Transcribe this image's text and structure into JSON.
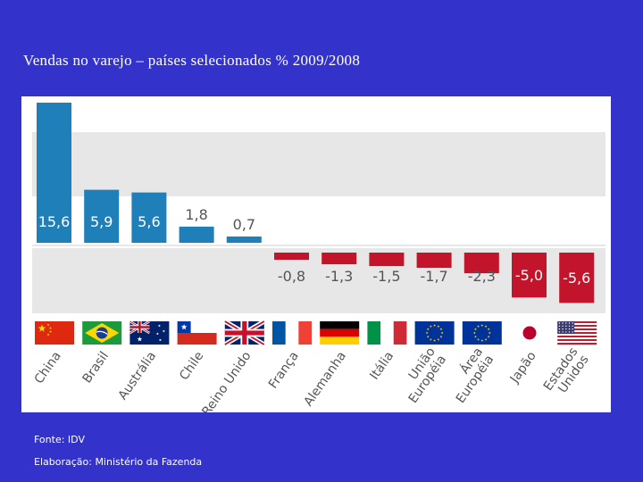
{
  "slide": {
    "title": "Vendas no varejo – países selecionados % 2009/2008",
    "source": "Fonte: IDV",
    "elaboration": "Elaboração: Ministério da Fazenda"
  },
  "chart_data": {
    "type": "bar",
    "title": "Vendas no varejo – países selecionados % 2009/2008",
    "xlabel": "",
    "ylabel": "%",
    "ylim": [
      -6,
      16
    ],
    "categories": [
      "China",
      "Brasil",
      "Austrália",
      "Chile",
      "Reino Unido",
      "França",
      "Alemanha",
      "Itália",
      "União Européia",
      "Área Européia",
      "Japão",
      "Estados Unidos"
    ],
    "values": [
      15.6,
      5.9,
      5.6,
      1.8,
      0.7,
      -0.8,
      -1.3,
      -1.5,
      -1.7,
      -2.3,
      -5.0,
      -5.6
    ],
    "value_labels": [
      "15,6",
      "5,9",
      "5,6",
      "1,8",
      "0,7",
      "-0,8",
      "-1,3",
      "-1,5",
      "-1,7",
      "-2,3",
      "-5,0",
      "-5,6"
    ],
    "label_lines": [
      [
        "China"
      ],
      [
        "Brasil"
      ],
      [
        "Austrália"
      ],
      [
        "Chile"
      ],
      [
        "Reino Unido"
      ],
      [
        "França"
      ],
      [
        "Alemanha"
      ],
      [
        "Itália"
      ],
      [
        "União",
        "Européia"
      ],
      [
        "Área",
        "Européia"
      ],
      [
        "Japão"
      ],
      [
        "Estados",
        "Unidos"
      ]
    ],
    "colors": {
      "positive": "#1f7fb8",
      "negative": "#c2142a",
      "band": "#e7e7e7",
      "label_dark": "#555555",
      "label_light": "#ffffff"
    },
    "flags": [
      "china-flag-icon",
      "brazil-flag-icon",
      "australia-flag-icon",
      "chile-flag-icon",
      "uk-flag-icon",
      "france-flag-icon",
      "germany-flag-icon",
      "italy-flag-icon",
      "eu-flag-icon",
      "eu-flag-icon",
      "japan-flag-icon",
      "usa-flag-icon"
    ]
  }
}
